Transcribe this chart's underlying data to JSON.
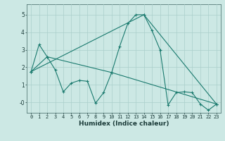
{
  "title": "",
  "xlabel": "Humidex (Indice chaleur)",
  "bg_color": "#cce8e4",
  "grid_color": "#aacfcb",
  "line_color": "#1a7a6e",
  "ylim": [
    -0.6,
    5.6
  ],
  "xlim": [
    -0.5,
    23.5
  ],
  "yticks": [
    0,
    1,
    2,
    3,
    4,
    5
  ],
  "ytick_labels": [
    "-0",
    "1",
    "2",
    "3",
    "4",
    "5"
  ],
  "xticks": [
    0,
    1,
    2,
    3,
    4,
    5,
    6,
    7,
    8,
    9,
    10,
    11,
    12,
    13,
    14,
    15,
    16,
    17,
    18,
    19,
    20,
    21,
    22,
    23
  ],
  "series1_x": [
    0,
    1,
    2,
    3,
    4,
    5,
    6,
    7,
    8,
    9,
    10,
    11,
    12,
    13,
    14,
    15,
    16,
    17,
    18,
    19,
    20,
    21,
    22,
    23
  ],
  "series1_y": [
    1.75,
    3.3,
    2.6,
    1.85,
    0.6,
    1.1,
    1.25,
    1.2,
    -0.05,
    0.55,
    1.7,
    3.2,
    4.5,
    5.0,
    5.0,
    4.1,
    3.0,
    -0.15,
    0.55,
    0.6,
    0.55,
    -0.1,
    -0.45,
    -0.1
  ],
  "series2_x": [
    0,
    2,
    10,
    23
  ],
  "series2_y": [
    1.75,
    2.6,
    1.7,
    -0.1
  ],
  "series3_x": [
    0,
    14,
    23
  ],
  "series3_y": [
    1.75,
    5.0,
    -0.1
  ],
  "xlabel_fontsize": 6.5,
  "tick_fontsize": 5.0,
  "linewidth": 0.8,
  "markersize": 2.5
}
